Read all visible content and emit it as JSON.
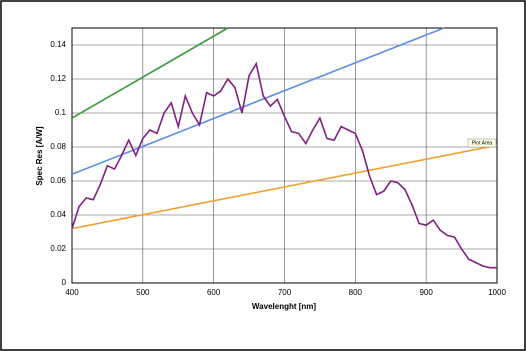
{
  "chart_data": {
    "type": "line",
    "x_label": "Wavelenght [nm]",
    "y_label": "Spec Res [A/W]",
    "annotation": "Plot Area",
    "xlim": [
      400,
      1000
    ],
    "xticks": [
      400,
      500,
      600,
      700,
      800,
      900,
      1000
    ],
    "ylim": [
      0,
      0.15
    ],
    "yticks": [
      0,
      0.02,
      0.04,
      0.06,
      0.08,
      0.1,
      0.12,
      0.14
    ],
    "grid": true,
    "series": [
      {
        "color": "#3a9a3a",
        "x": [
          400,
          620
        ],
        "values": [
          0.097,
          0.15
        ]
      },
      {
        "color": "#5b8ee6",
        "x": [
          400,
          925
        ],
        "values": [
          0.064,
          0.15
        ]
      },
      {
        "color": "#f0a030",
        "x": [
          400,
          1000
        ],
        "values": [
          0.032,
          0.081
        ]
      },
      {
        "color": "#80207f",
        "x": [
          400,
          410,
          420,
          430,
          440,
          450,
          460,
          470,
          480,
          490,
          500,
          510,
          520,
          530,
          540,
          550,
          560,
          570,
          580,
          590,
          600,
          610,
          620,
          630,
          640,
          650,
          660,
          670,
          680,
          690,
          700,
          710,
          720,
          730,
          740,
          750,
          760,
          770,
          780,
          790,
          800,
          810,
          820,
          830,
          840,
          850,
          860,
          870,
          880,
          890,
          900,
          910,
          920,
          930,
          940,
          950,
          960,
          970,
          980,
          990,
          1000
        ],
        "values": [
          0.032,
          0.045,
          0.05,
          0.049,
          0.058,
          0.069,
          0.067,
          0.075,
          0.084,
          0.075,
          0.085,
          0.09,
          0.088,
          0.1,
          0.106,
          0.092,
          0.11,
          0.1,
          0.093,
          0.112,
          0.11,
          0.113,
          0.12,
          0.115,
          0.1,
          0.122,
          0.129,
          0.11,
          0.104,
          0.108,
          0.098,
          0.089,
          0.088,
          0.082,
          0.09,
          0.097,
          0.085,
          0.084,
          0.092,
          0.09,
          0.088,
          0.078,
          0.063,
          0.052,
          0.054,
          0.06,
          0.059,
          0.055,
          0.046,
          0.035,
          0.034,
          0.037,
          0.031,
          0.028,
          0.027,
          0.02,
          0.014,
          0.012,
          0.01,
          0.009,
          0.009
        ]
      }
    ]
  }
}
